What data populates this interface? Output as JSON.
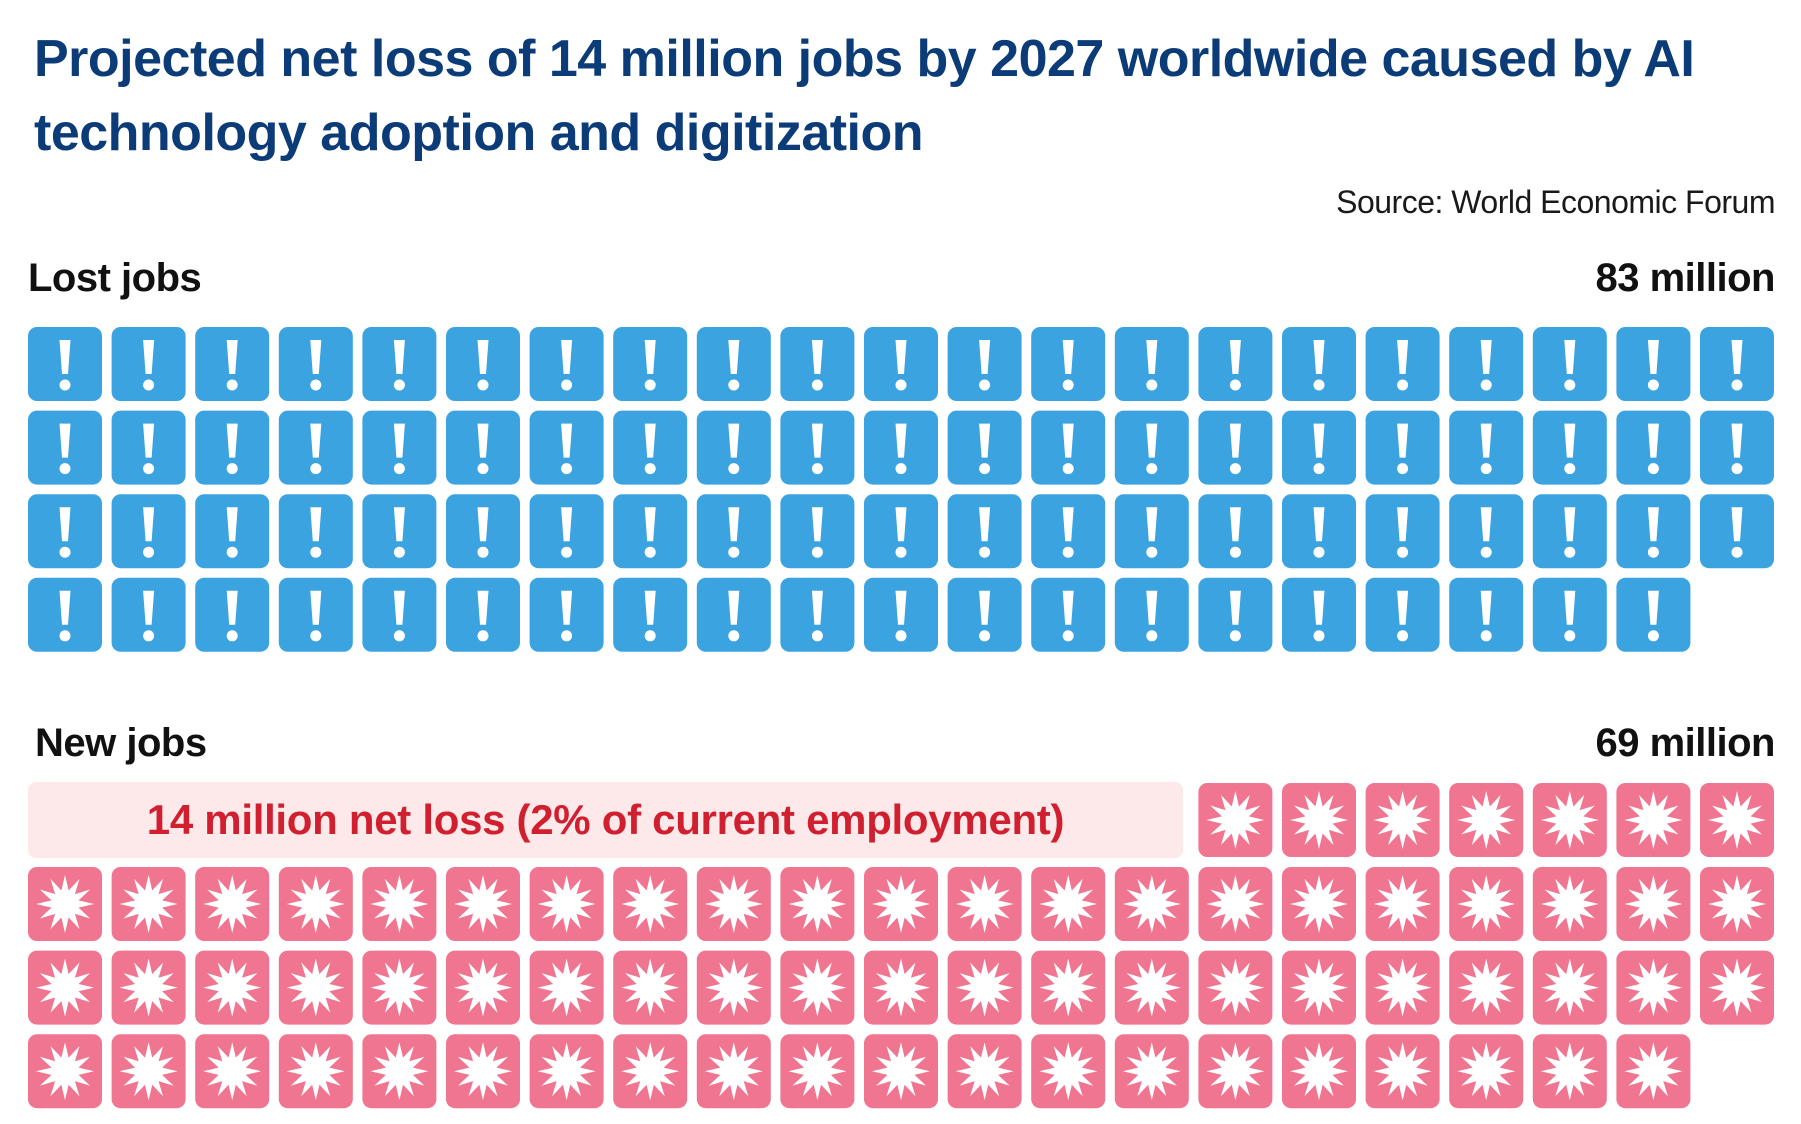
{
  "title": "Projected net loss of 14 million jobs by 2027 worldwide caused by AI technology adoption and digitization",
  "source": "Source: World Economic Forum",
  "colors": {
    "title": "#0c3c78",
    "lost_icon": "#3ba3e0",
    "new_icon": "#f07590",
    "callout_bg": "#fde8ea",
    "callout_text": "#d0202f"
  },
  "icons": {
    "lost": "exclamation-icon",
    "new": "starburst-icon"
  },
  "chart_data": {
    "type": "pictogram",
    "series": [
      {
        "name": "Lost jobs",
        "total_label": "83 million",
        "value_millions": 83,
        "icon_count": 83
      },
      {
        "name": "New jobs",
        "total_label": "69 million",
        "value_millions": 69,
        "icon_count": 69
      }
    ],
    "annotation": "14 million net loss (2% of current employment)",
    "net_loss_millions": 14,
    "net_loss_percent": 2
  }
}
